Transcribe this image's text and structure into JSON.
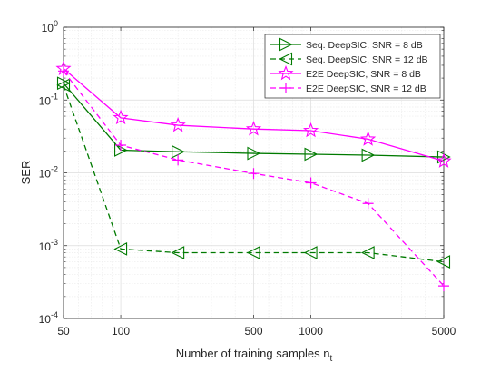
{
  "chart_data": {
    "type": "line",
    "xlabel": "Number of training samples n",
    "xlabel_subscript": "t",
    "ylabel": "SER",
    "x_scale": "log",
    "y_scale": "log",
    "xlim": [
      50,
      5000
    ],
    "ylim": [
      0.0001,
      1
    ],
    "x_ticks": [
      {
        "value": 50,
        "label": "50"
      },
      {
        "value": 100,
        "label": "100"
      },
      {
        "value": 500,
        "label": "500"
      },
      {
        "value": 1000,
        "label": "1000"
      },
      {
        "value": 5000,
        "label": "5000"
      }
    ],
    "y_ticks": [
      {
        "value": 0.0001,
        "base": "10",
        "exp": "-4"
      },
      {
        "value": 0.001,
        "base": "10",
        "exp": "-3"
      },
      {
        "value": 0.01,
        "base": "10",
        "exp": "-2"
      },
      {
        "value": 0.1,
        "base": "10",
        "exp": "-1"
      },
      {
        "value": 1,
        "base": "10",
        "exp": "0"
      }
    ],
    "grid": true,
    "legend_position": "top-right",
    "x": [
      50,
      100,
      200,
      500,
      1000,
      2000,
      5000
    ],
    "series": [
      {
        "name": "Seq. DeepSIC, SNR = 8 dB",
        "color": "#007a00",
        "dash": "solid",
        "marker": "triangle-right",
        "values": [
          0.17,
          0.0205,
          0.0195,
          0.0185,
          0.018,
          0.0175,
          0.0165
        ]
      },
      {
        "name": "Seq. DeepSIC, SNR = 12 dB",
        "color": "#007a00",
        "dash": "dashed",
        "marker": "triangle-left",
        "values": [
          0.16,
          0.0009,
          0.0008,
          0.0008,
          0.0008,
          0.0008,
          0.0006
        ]
      },
      {
        "name": "E2E DeepSIC, SNR = 8 dB",
        "color": "#ff00ff",
        "dash": "solid",
        "marker": "star",
        "values": [
          0.27,
          0.057,
          0.045,
          0.04,
          0.038,
          0.029,
          0.0145
        ]
      },
      {
        "name": "E2E DeepSIC, SNR = 12 dB",
        "color": "#ff00ff",
        "dash": "dashed",
        "marker": "plus",
        "values": [
          0.25,
          0.024,
          0.015,
          0.0098,
          0.0073,
          0.0038,
          0.00028
        ]
      }
    ]
  }
}
